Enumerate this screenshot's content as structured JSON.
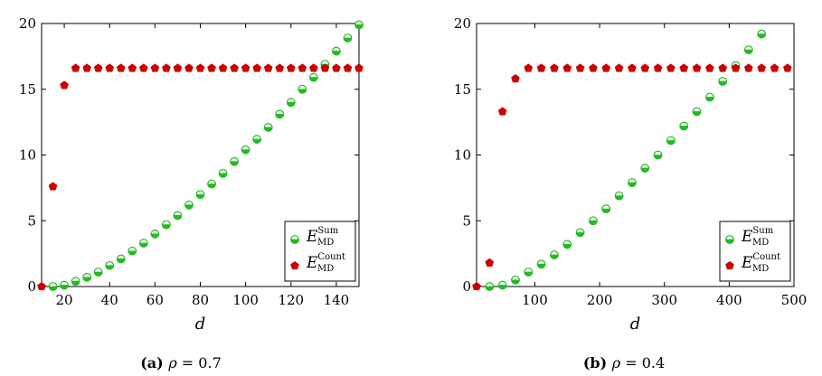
{
  "colors": {
    "sum": "#22bb22",
    "count": "#cc0000"
  },
  "chart_data": [
    {
      "type": "scatter",
      "xlabel": "d",
      "xlim": [
        10,
        150
      ],
      "ylim": [
        0,
        20
      ],
      "xticks": [
        20,
        40,
        60,
        80,
        100,
        120,
        140
      ],
      "yticks": [
        0,
        5,
        10,
        15,
        20
      ],
      "legend_position": "bottom-right",
      "caption": {
        "tag": "(a)",
        "symbol": "ρ",
        "rest": " = 0.7"
      },
      "series": [
        {
          "name": "Sum",
          "marker": "half-circle",
          "color": "#22bb22",
          "x": [
            15,
            20,
            25,
            30,
            35,
            40,
            45,
            50,
            55,
            60,
            65,
            70,
            75,
            80,
            85,
            90,
            95,
            100,
            105,
            110,
            115,
            120,
            125,
            130,
            135,
            140,
            145,
            150
          ],
          "y": [
            0.0,
            0.1,
            0.4,
            0.7,
            1.1,
            1.6,
            2.1,
            2.7,
            3.3,
            4.0,
            4.7,
            5.4,
            6.2,
            7.0,
            7.8,
            8.6,
            9.5,
            10.4,
            11.2,
            12.1,
            13.1,
            14.0,
            15.0,
            15.9,
            16.9,
            17.9,
            18.9,
            19.9
          ]
        },
        {
          "name": "Count",
          "marker": "pentagon",
          "color": "#cc0000",
          "x": [
            10,
            15,
            20,
            25,
            30,
            35,
            40,
            45,
            50,
            55,
            60,
            65,
            70,
            75,
            80,
            85,
            90,
            95,
            100,
            105,
            110,
            115,
            120,
            125,
            130,
            135,
            140,
            145,
            150
          ],
          "y": [
            0.0,
            7.6,
            15.3,
            16.6,
            16.6,
            16.6,
            16.6,
            16.6,
            16.6,
            16.6,
            16.6,
            16.6,
            16.6,
            16.6,
            16.6,
            16.6,
            16.6,
            16.6,
            16.6,
            16.6,
            16.6,
            16.6,
            16.6,
            16.6,
            16.6,
            16.6,
            16.6,
            16.6,
            16.6
          ]
        }
      ]
    },
    {
      "type": "scatter",
      "xlabel": "d",
      "xlim": [
        10,
        500
      ],
      "ylim": [
        0,
        20
      ],
      "xticks": [
        100,
        200,
        300,
        400,
        500
      ],
      "yticks": [
        0,
        5,
        10,
        15,
        20
      ],
      "legend_position": "bottom-right",
      "caption": {
        "tag": "(b)",
        "symbol": "ρ",
        "rest": " = 0.4"
      },
      "series": [
        {
          "name": "Sum",
          "marker": "half-circle",
          "color": "#22bb22",
          "x": [
            30,
            50,
            70,
            90,
            110,
            130,
            150,
            170,
            190,
            210,
            230,
            250,
            270,
            290,
            310,
            330,
            350,
            370,
            390,
            410,
            430,
            450,
            470
          ],
          "y": [
            0.0,
            0.1,
            0.5,
            1.1,
            1.7,
            2.4,
            3.2,
            4.1,
            5.0,
            5.9,
            6.9,
            7.9,
            9.0,
            10.0,
            11.1,
            12.2,
            13.3,
            14.4,
            15.6,
            16.8,
            18.0,
            19.2,
            null
          ]
        },
        {
          "name": "Count",
          "marker": "pentagon",
          "color": "#cc0000",
          "x": [
            10,
            30,
            50,
            70,
            90,
            110,
            130,
            150,
            170,
            190,
            210,
            230,
            250,
            270,
            290,
            310,
            330,
            350,
            370,
            390,
            410,
            430,
            450,
            470,
            490
          ],
          "y": [
            0.0,
            1.8,
            13.3,
            15.8,
            16.6,
            16.6,
            16.6,
            16.6,
            16.6,
            16.6,
            16.6,
            16.6,
            16.6,
            16.6,
            16.6,
            16.6,
            16.6,
            16.6,
            16.6,
            16.6,
            16.6,
            16.6,
            16.6,
            16.6,
            16.6
          ]
        }
      ]
    }
  ],
  "legend": {
    "symbol": "E",
    "subscript": "MD",
    "sum_label": "Sum",
    "count_label": "Count"
  }
}
